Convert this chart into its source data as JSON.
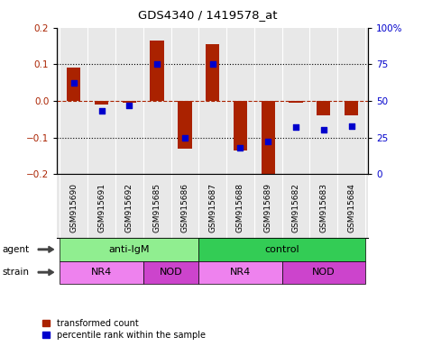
{
  "title": "GDS4340 / 1419578_at",
  "samples": [
    "GSM915690",
    "GSM915691",
    "GSM915692",
    "GSM915685",
    "GSM915686",
    "GSM915687",
    "GSM915688",
    "GSM915689",
    "GSM915682",
    "GSM915683",
    "GSM915684"
  ],
  "red_values": [
    0.09,
    -0.01,
    -0.005,
    0.165,
    -0.13,
    0.155,
    -0.135,
    -0.205,
    -0.005,
    -0.04,
    -0.04
  ],
  "blue_percentile": [
    62,
    43,
    47,
    75,
    25,
    75,
    18,
    22,
    32,
    30,
    33
  ],
  "ylim": [
    -0.2,
    0.2
  ],
  "yticks_left": [
    -0.2,
    -0.1,
    0.0,
    0.1,
    0.2
  ],
  "yticks_right": [
    0,
    25,
    50,
    75,
    100
  ],
  "agent_groups": [
    {
      "label": "anti-IgM",
      "start": 0,
      "end": 5,
      "color": "#90EE90"
    },
    {
      "label": "control",
      "start": 5,
      "end": 11,
      "color": "#33CC55"
    }
  ],
  "strain_groups": [
    {
      "label": "NR4",
      "start": 0,
      "end": 3,
      "color": "#EE82EE"
    },
    {
      "label": "NOD",
      "start": 3,
      "end": 5,
      "color": "#CC44CC"
    },
    {
      "label": "NR4",
      "start": 5,
      "end": 8,
      "color": "#EE82EE"
    },
    {
      "label": "NOD",
      "start": 8,
      "end": 11,
      "color": "#CC44CC"
    }
  ],
  "bar_color": "#AA2200",
  "dot_color": "#0000CC",
  "tick_label_color_left": "#AA2200",
  "tick_label_color_right": "#0000CC",
  "legend_red": "transformed count",
  "legend_blue": "percentile rank within the sample",
  "bar_width": 0.5,
  "dot_size": 22,
  "bg_color": "#E8E8E8",
  "separator_color": "#FFFFFF"
}
